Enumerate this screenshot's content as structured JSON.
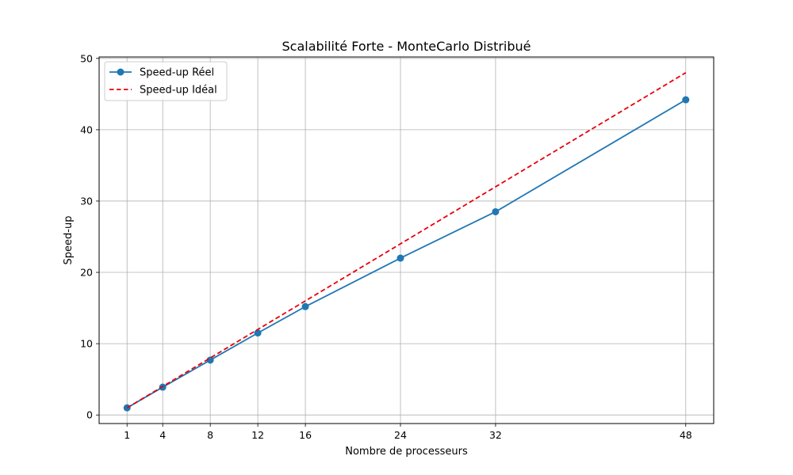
{
  "chart_data": {
    "type": "line",
    "title": "Scalabilité Forte - MonteCarlo Distribué",
    "xlabel": "Nombre de processeurs",
    "ylabel": "Speed-up",
    "x": [
      1,
      4,
      8,
      12,
      16,
      24,
      32,
      48
    ],
    "xticks": [
      1,
      4,
      8,
      12,
      16,
      24,
      32,
      48
    ],
    "yticks": [
      0,
      10,
      20,
      30,
      40,
      50
    ],
    "xlim": [
      -1.35,
      50.35
    ],
    "ylim": [
      -1.2,
      50.2
    ],
    "grid": true,
    "legend_position": "top-left",
    "series": [
      {
        "name": "Speed-up Réel",
        "values": [
          1,
          3.9,
          7.7,
          11.5,
          15.2,
          22.0,
          28.5,
          44.2
        ],
        "color": "#1f77b4",
        "style": "solid",
        "marker": "circle"
      },
      {
        "name": "Speed-up Idéal",
        "values": [
          1,
          4,
          8,
          12,
          16,
          24,
          32,
          48
        ],
        "color": "#e8000b",
        "style": "dashed",
        "marker": "none"
      }
    ]
  }
}
